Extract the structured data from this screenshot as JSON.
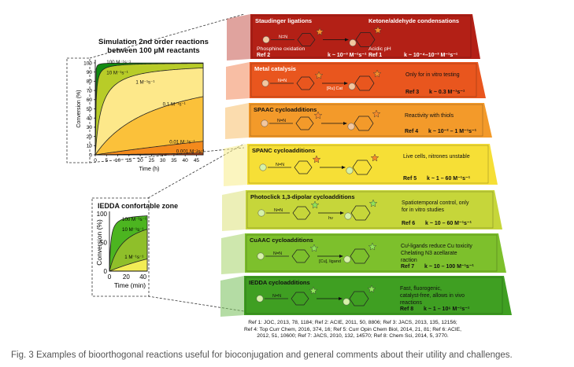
{
  "sim": {
    "title": "Simulation 2nd order reactions",
    "subtitle": "between 100 µM reactants",
    "ylabel": "Conversion (%)",
    "xlabel": "Time (h)",
    "yticks": [
      "0",
      "10",
      "20",
      "30",
      "40",
      "50",
      "60",
      "70",
      "80",
      "90",
      "100"
    ],
    "xticks": [
      "0",
      "5",
      "10",
      "15",
      "20",
      "25",
      "30",
      "35",
      "40",
      "45"
    ]
  },
  "iedda": {
    "title": "IEDDA confortable zone",
    "ylabel": "Conversion (%)",
    "xlabel": "Time (min)",
    "yticks": [
      "0",
      "50",
      "100"
    ],
    "xticks": [
      "0",
      "20",
      "40"
    ]
  },
  "chart_data": [
    {
      "type": "line",
      "title": "Simulation 2nd order reactions between 100 µM reactants",
      "xlabel": "Time (h)",
      "ylabel": "Conversion (%)",
      "xlim": [
        0,
        48
      ],
      "ylim": [
        0,
        100
      ],
      "series": [
        {
          "name": "100 M⁻¹s⁻¹",
          "k": 100,
          "color": "#118a11"
        },
        {
          "name": "10 M⁻¹s⁻¹",
          "k": 10,
          "color": "#b8cc28"
        },
        {
          "name": "1 M⁻¹s⁻¹",
          "k": 1,
          "color": "#fde88a"
        },
        {
          "name": "0.1 M⁻¹s⁻¹",
          "k": 0.1,
          "color": "#fbc13a"
        },
        {
          "name": "0.01 M⁻¹s⁻¹",
          "k": 0.01,
          "color": "#f48a1c"
        },
        {
          "name": "0.001 M⁻¹s⁻¹",
          "k": 0.001,
          "color": "#e34a16"
        }
      ]
    },
    {
      "type": "line",
      "title": "IEDDA confortable zone",
      "xlabel": "Time (min)",
      "ylabel": "Conversion (%)",
      "xlim": [
        0,
        45
      ],
      "ylim": [
        0,
        100
      ],
      "series": [
        {
          "name": "100 M⁻¹s⁻¹",
          "k": 100,
          "color": "#4cb520"
        },
        {
          "name": "10 M⁻¹s⁻¹",
          "k": 10,
          "color": "#8fbf2a"
        },
        {
          "name": "1 M⁻¹s⁻¹",
          "k": 1,
          "color": "#f2ec55"
        }
      ]
    }
  ],
  "bands": [
    {
      "title": "Staudinger ligations",
      "title2": "Ketone/aldehyde condensations",
      "ref": "Ref 2",
      "k": "k ~ 10⁻³ M⁻¹s⁻¹",
      "ref2": "Ref 1",
      "k2": "k ~ 10⁻⁴–10⁻³ M⁻¹s⁻¹",
      "note": "Phosphine oxidation",
      "note2": "Acidic pH",
      "color": "#b32016"
    },
    {
      "title": "Metal catalysis",
      "note": "Only for in vitro testing",
      "ref": "Ref 3",
      "k": "k ~ 0.3 M⁻¹s⁻¹",
      "reagent": "[Ru] Cat",
      "color": "#e9561e"
    },
    {
      "title": "SPAAC cycloadditions",
      "note": "Reactivity with thiols",
      "ref": "Ref 4",
      "k": "k ~ 10⁻² – 1 M⁻¹s⁻¹",
      "color": "#f39a2a"
    },
    {
      "title": "SPANC cycloadditions",
      "note": "Live cells, nitrones unstable",
      "ref": "Ref 5",
      "k": "k ~ 1 – 60 M⁻¹s⁻¹",
      "color": "#f6df36"
    },
    {
      "title": "Photoclick 1,3-dipolar cycloadditions",
      "note": "Spatiotemporal control, only for in vitro studies",
      "ref": "Ref 6",
      "k": "k ~ 10 – 60 M⁻¹s⁻¹",
      "reagent": "hν",
      "color": "#c6d63a"
    },
    {
      "title": "CuAAC cycloadditions",
      "note": "Cuᴵ-ligands reduce Cu toxicity Chelating N3 acellarate raction",
      "ref": "Ref 7",
      "k": "k ~ 10 – 100 M⁻¹s⁻¹",
      "reagent": "[Cu], ligand",
      "color": "#7dc02c"
    },
    {
      "title": "IEDDA cycloadditions",
      "note": "Fast, fluorogenic, catalyst-free, allows in vivo reactions",
      "ref": "Ref 8",
      "k": "k ~ 1 – 10⁶ M⁻¹s⁻¹",
      "color": "#3f9f22"
    }
  ],
  "references": {
    "line1": "Ref 1: JOC, 2013, 78, 1184; Ref 2: ACIE, 2011, 50, 8806; Ref 3: JACS, 2013, 135, 12156;",
    "line2": "Ref 4: Top Curr Chem, 2016, 374, 16; Ref 5: Curr Opin Chem Biol, 2014, 21, 81; Ref 6: ACIE,",
    "line3": "2012, 51, 10600; Ref 7: JACS, 2010, 132, 14570; Ref 8: Chem Sci, 2014, 5, 3770."
  },
  "caption": "Fig. 3 Examples of bioorthogonal reactions useful for bioconjugation and general comments about their utility and challenges."
}
